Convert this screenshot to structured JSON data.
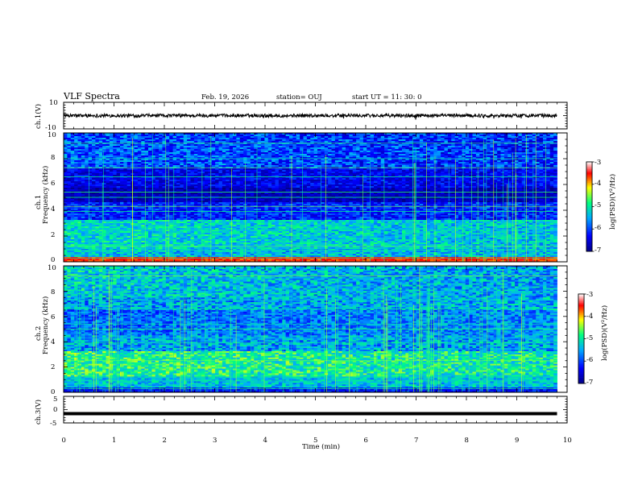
{
  "header": {
    "title": "VLF Spectra",
    "date": "Feb. 19, 2026",
    "station": "station= OUJ",
    "start_ut": "start  UT  =   11: 30: 0"
  },
  "colors": {
    "waveform": "#000000",
    "colorbar": [
      "#000080",
      "#0000ff",
      "#00c0ff",
      "#00ff80",
      "#ffff00",
      "#ff0000",
      "#ffffff"
    ]
  },
  "chart_data": [
    {
      "type": "line",
      "name": "ch1-waveform",
      "ylabel": "ch.1(V)",
      "ylim": [
        -10,
        10
      ],
      "y_ticks": [
        "10",
        "-10"
      ],
      "xlim": [
        0,
        10
      ],
      "x_data_end": 9.8,
      "level": 0,
      "grid": false
    },
    {
      "type": "heatmap",
      "name": "ch1-spectrogram",
      "ylabel_lines": [
        "ch.1",
        "Frequency (kHz)"
      ],
      "ylim": [
        0,
        10
      ],
      "y_ticks": [
        "0",
        "2",
        "4",
        "6",
        "8",
        "10"
      ],
      "xlim": [
        0,
        10
      ],
      "x_data_end": 9.8,
      "colorbar": {
        "label": "log(PSD)(V²/Hz)",
        "range": [
          -7,
          -3
        ],
        "ticks": [
          "-3",
          "-4",
          "-5",
          "-6",
          "-7"
        ]
      }
    },
    {
      "type": "heatmap",
      "name": "ch2-spectrogram",
      "ylabel_lines": [
        "ch.2",
        "Frequency (kHz)"
      ],
      "ylim": [
        0,
        10
      ],
      "y_ticks": [
        "0",
        "2",
        "4",
        "6",
        "8",
        "10"
      ],
      "xlim": [
        0,
        10
      ],
      "x_data_end": 9.8,
      "colorbar": {
        "label": "log(PSD)(V²/Hz)",
        "range": [
          -7,
          -3
        ],
        "ticks": [
          "-3",
          "-4",
          "-5",
          "-6",
          "-7"
        ]
      }
    },
    {
      "type": "line",
      "name": "ch3-waveform",
      "ylabel": "ch.3(V)",
      "ylim": [
        -5,
        5
      ],
      "y_ticks": [
        "5",
        "0",
        "-5"
      ],
      "xlim": [
        0,
        10
      ],
      "x_data_end": 9.8,
      "level": -1.5,
      "grid": false
    }
  ],
  "x_axis": {
    "label": "Time  (min)",
    "ticks": [
      "0",
      "1",
      "2",
      "3",
      "4",
      "5",
      "6",
      "7",
      "8",
      "9",
      "10"
    ]
  }
}
